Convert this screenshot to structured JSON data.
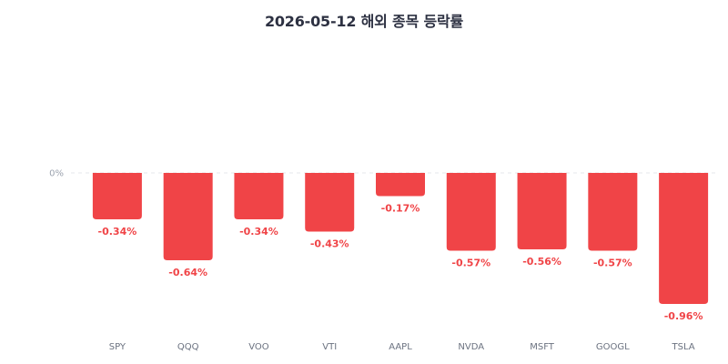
{
  "chart_data": {
    "type": "bar",
    "title": "2026-05-12 해외 종목 등락률",
    "categories": [
      "SPY",
      "QQQ",
      "VOO",
      "VTI",
      "AAPL",
      "NVDA",
      "MSFT",
      "GOOGL",
      "TSLA"
    ],
    "values": [
      -0.34,
      -0.64,
      -0.34,
      -0.43,
      -0.17,
      -0.57,
      -0.56,
      -0.57,
      -0.96
    ],
    "value_labels": [
      "-0.34%",
      "-0.64%",
      "-0.34%",
      "-0.43%",
      "-0.17%",
      "-0.57%",
      "-0.56%",
      "-0.57%",
      "-0.96%"
    ],
    "zero_label": "0%",
    "ylim": [
      -1.2,
      0.93
    ],
    "grid": "zero-line only",
    "xlabel": "",
    "ylabel": "",
    "colors": {
      "negative": "#f04447",
      "axis_text": "#9ca3af",
      "category_text": "#6b7280",
      "zero_line": "#e5e7eb"
    }
  }
}
